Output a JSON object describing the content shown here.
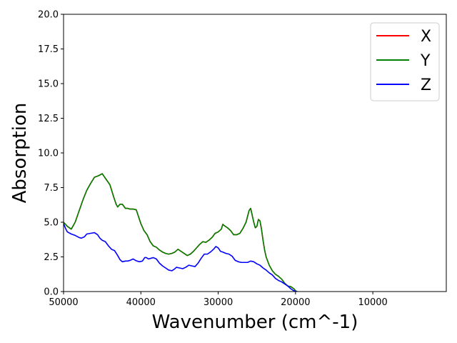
{
  "chart_data": {
    "type": "line",
    "xlabel": "Wavenumber (cm^-1)",
    "ylabel": "Absorption",
    "xlim": [
      50000,
      500
    ],
    "ylim": [
      0,
      20
    ],
    "x_inverted": true,
    "x_ticks": [
      50000,
      40000,
      30000,
      20000,
      10000
    ],
    "x_tick_labels": [
      "50000",
      "40000",
      "30000",
      "20000",
      "10000"
    ],
    "y_ticks": [
      0,
      2.5,
      5,
      7.5,
      10,
      12.5,
      15,
      17.5,
      20
    ],
    "y_tick_labels": [
      "0.0",
      "2.5",
      "5.0",
      "7.5",
      "10.0",
      "12.5",
      "15.0",
      "17.5",
      "20.0"
    ],
    "grid": false,
    "legend_position": "top-right",
    "series": [
      {
        "name": "X",
        "color": "#ff0000",
        "x": [
          50000,
          49500,
          49000,
          48500,
          48000,
          47500,
          47000,
          46500,
          46000,
          45500,
          45000,
          44500,
          44000,
          43500,
          43200,
          43000,
          42700,
          42400,
          42000,
          41700,
          41400,
          41000,
          40600,
          40300,
          40000,
          39600,
          39200,
          38800,
          38400,
          38000,
          37600,
          37200,
          36800,
          36400,
          36000,
          35600,
          35200,
          34800,
          34400,
          34000,
          33600,
          33200,
          32800,
          32400,
          32000,
          31600,
          31200,
          30800,
          30400,
          30000,
          29600,
          29400,
          29200,
          28800,
          28400,
          28000,
          27600,
          27200,
          26800,
          26400,
          26000,
          25800,
          25600,
          25400,
          25200,
          25000,
          24800,
          24600,
          24400,
          24200,
          24000,
          23800,
          23400,
          23000,
          22600,
          22200,
          21800,
          21400,
          21000,
          20600,
          20200,
          20000,
          19800
        ],
        "y": [
          5.0,
          4.7,
          4.5,
          5.0,
          5.8,
          6.6,
          7.3,
          7.8,
          8.25,
          8.35,
          8.5,
          8.1,
          7.7,
          6.8,
          6.3,
          6.1,
          6.3,
          6.3,
          6.0,
          6.0,
          5.95,
          5.95,
          5.9,
          5.4,
          4.9,
          4.4,
          4.1,
          3.6,
          3.3,
          3.2,
          3.0,
          2.85,
          2.75,
          2.7,
          2.75,
          2.85,
          3.05,
          2.9,
          2.75,
          2.6,
          2.7,
          2.9,
          3.15,
          3.4,
          3.6,
          3.55,
          3.7,
          3.9,
          4.2,
          4.3,
          4.5,
          4.85,
          4.75,
          4.6,
          4.4,
          4.1,
          4.1,
          4.2,
          4.55,
          5.0,
          5.85,
          6.0,
          5.5,
          5.0,
          4.6,
          4.7,
          5.2,
          5.1,
          4.5,
          3.7,
          3.0,
          2.5,
          1.9,
          1.5,
          1.25,
          1.1,
          0.9,
          0.6,
          0.4,
          0.35,
          0.2,
          0.05,
          0.0
        ]
      },
      {
        "name": "Y",
        "color": "#008000",
        "x": [
          50000,
          49500,
          49000,
          48500,
          48000,
          47500,
          47000,
          46500,
          46000,
          45500,
          45000,
          44500,
          44000,
          43500,
          43200,
          43000,
          42700,
          42400,
          42000,
          41700,
          41400,
          41000,
          40600,
          40300,
          40000,
          39600,
          39200,
          38800,
          38400,
          38000,
          37600,
          37200,
          36800,
          36400,
          36000,
          35600,
          35200,
          34800,
          34400,
          34000,
          33600,
          33200,
          32800,
          32400,
          32000,
          31600,
          31200,
          30800,
          30400,
          30000,
          29600,
          29400,
          29200,
          28800,
          28400,
          28000,
          27600,
          27200,
          26800,
          26400,
          26000,
          25800,
          25600,
          25400,
          25200,
          25000,
          24800,
          24600,
          24400,
          24200,
          24000,
          23800,
          23400,
          23000,
          22600,
          22200,
          21800,
          21400,
          21000,
          20600,
          20200,
          20000,
          19800
        ],
        "y": [
          5.0,
          4.7,
          4.5,
          5.0,
          5.8,
          6.6,
          7.3,
          7.8,
          8.25,
          8.35,
          8.5,
          8.1,
          7.7,
          6.8,
          6.3,
          6.1,
          6.3,
          6.3,
          6.0,
          6.0,
          5.95,
          5.95,
          5.9,
          5.4,
          4.9,
          4.4,
          4.1,
          3.6,
          3.3,
          3.2,
          3.0,
          2.85,
          2.75,
          2.7,
          2.75,
          2.85,
          3.05,
          2.9,
          2.75,
          2.6,
          2.7,
          2.9,
          3.15,
          3.4,
          3.6,
          3.55,
          3.7,
          3.9,
          4.2,
          4.3,
          4.5,
          4.85,
          4.75,
          4.6,
          4.4,
          4.1,
          4.1,
          4.2,
          4.55,
          5.0,
          5.85,
          6.0,
          5.5,
          5.0,
          4.6,
          4.7,
          5.2,
          5.1,
          4.5,
          3.7,
          3.0,
          2.5,
          1.9,
          1.5,
          1.25,
          1.1,
          0.9,
          0.6,
          0.4,
          0.35,
          0.2,
          0.05,
          0.0
        ]
      },
      {
        "name": "Z",
        "color": "#0000ff",
        "x": [
          50000,
          49700,
          49500,
          49000,
          48500,
          48000,
          47700,
          47300,
          47000,
          46500,
          46000,
          45600,
          45300,
          45000,
          44600,
          44200,
          43800,
          43400,
          43000,
          42700,
          42400,
          42000,
          41700,
          41400,
          41000,
          40700,
          40500,
          40200,
          39800,
          39500,
          39300,
          39000,
          38700,
          38400,
          38000,
          37600,
          37200,
          36800,
          36400,
          36000,
          35700,
          35400,
          35000,
          34600,
          34200,
          33800,
          33400,
          33000,
          32600,
          32200,
          31800,
          31400,
          31000,
          30600,
          30300,
          30000,
          29700,
          29400,
          29000,
          28600,
          28200,
          27800,
          27400,
          27000,
          26600,
          26200,
          25800,
          25400,
          25000,
          24600,
          24200,
          23800,
          23400,
          23000,
          22600,
          22200,
          21800,
          21400,
          21000,
          20600,
          20200,
          19800
        ],
        "y": [
          4.9,
          4.5,
          4.3,
          4.15,
          4.05,
          3.9,
          3.85,
          3.95,
          4.15,
          4.2,
          4.25,
          4.1,
          3.85,
          3.7,
          3.6,
          3.3,
          3.05,
          2.95,
          2.6,
          2.3,
          2.15,
          2.2,
          2.2,
          2.25,
          2.35,
          2.25,
          2.2,
          2.15,
          2.2,
          2.45,
          2.45,
          2.35,
          2.4,
          2.45,
          2.35,
          2.05,
          1.85,
          1.7,
          1.55,
          1.5,
          1.6,
          1.75,
          1.7,
          1.65,
          1.75,
          1.9,
          1.85,
          1.8,
          2.05,
          2.4,
          2.7,
          2.7,
          2.85,
          3.05,
          3.25,
          3.15,
          2.9,
          2.85,
          2.75,
          2.7,
          2.55,
          2.25,
          2.15,
          2.1,
          2.1,
          2.1,
          2.2,
          2.15,
          2.0,
          1.9,
          1.7,
          1.55,
          1.35,
          1.2,
          0.95,
          0.8,
          0.7,
          0.55,
          0.4,
          0.2,
          0.05,
          0.0
        ]
      }
    ]
  }
}
